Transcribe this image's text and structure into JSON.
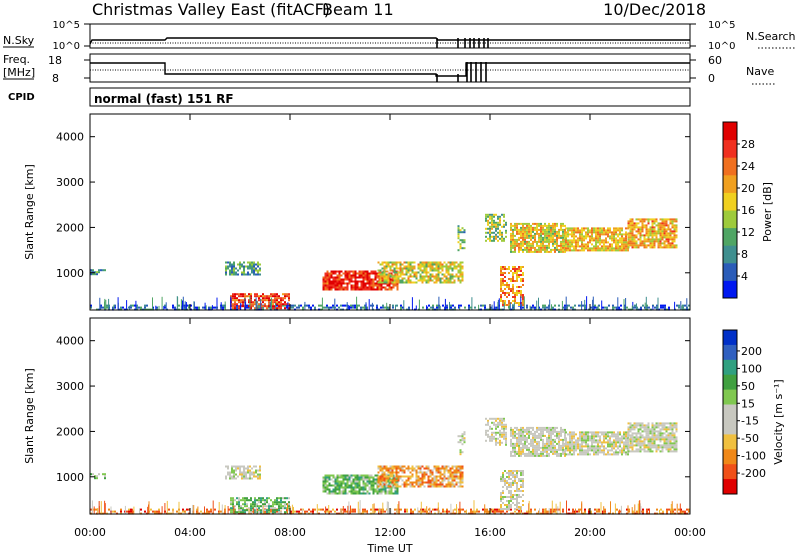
{
  "header": {
    "title": "Christmas Valley East (fitACF)",
    "beam": "Beam 11",
    "date": "10/Dec/2018"
  },
  "sky_panel": {
    "left_label": "N.Sky",
    "left_ticks": [
      "10^5",
      "10^0"
    ],
    "right_label": "N.Search",
    "right_ticks": [
      "10^5",
      "10^0"
    ]
  },
  "freq_panel": {
    "left_label_line1": "Freq.",
    "left_label_line2": "[MHz]",
    "left_ticks": [
      "18",
      "8"
    ],
    "right_label": "Nave",
    "right_ticks": [
      "60",
      "0"
    ]
  },
  "cpid": {
    "label": "CPID",
    "text": "normal (fast) 151 RF"
  },
  "colors": {
    "power": [
      "#0018f0",
      "#2a5cb8",
      "#3f8f8f",
      "#4fa564",
      "#9ecb3c",
      "#f0d020",
      "#f0a020",
      "#f07020",
      "#f03020",
      "#e00000"
    ],
    "velocity": [
      "#e00000",
      "#f05018",
      "#f08818",
      "#f0c040",
      "#c8c8c0",
      "#c8c8c0",
      "#80c850",
      "#40a040",
      "#30a080",
      "#3060c0",
      "#0030c8"
    ]
  },
  "chart_data": [
    {
      "type": "heatmap",
      "name": "power",
      "ylabel": "Slant Range [km]",
      "y_ticks": [
        "1000",
        "2000",
        "3000",
        "4000"
      ],
      "ylim": [
        180,
        4500
      ],
      "xlim": [
        0,
        24
      ],
      "colorbar": {
        "label": "Power [dB]",
        "ticks": [
          "4",
          "8",
          "12",
          "16",
          "20",
          "24",
          "28"
        ],
        "range": [
          0,
          32
        ]
      },
      "regions": [
        {
          "t0": 0.0,
          "t1": 24.0,
          "r0": 200,
          "r1": 300,
          "level": 6,
          "density": 0.45
        },
        {
          "t0": 0.0,
          "t1": 0.6,
          "r0": 950,
          "r1": 1080,
          "level": 9,
          "density": 0.5
        },
        {
          "t0": 5.4,
          "t1": 6.8,
          "r0": 950,
          "r1": 1250,
          "level": 10,
          "density": 0.65
        },
        {
          "t0": 5.6,
          "t1": 8.0,
          "r0": 240,
          "r1": 550,
          "level": 27,
          "density": 0.7
        },
        {
          "t0": 9.3,
          "t1": 12.3,
          "r0": 650,
          "r1": 1050,
          "level": 28,
          "density": 0.85
        },
        {
          "t0": 11.5,
          "t1": 14.9,
          "r0": 780,
          "r1": 1250,
          "level": 17,
          "density": 0.75
        },
        {
          "t0": 14.7,
          "t1": 15.0,
          "r0": 1500,
          "r1": 2050,
          "level": 12,
          "density": 0.4
        },
        {
          "t0": 15.8,
          "t1": 16.6,
          "r0": 1700,
          "r1": 2300,
          "level": 14,
          "density": 0.55
        },
        {
          "t0": 16.4,
          "t1": 17.3,
          "r0": 300,
          "r1": 1150,
          "level": 22,
          "density": 0.6
        },
        {
          "t0": 16.8,
          "t1": 19.0,
          "r0": 1450,
          "r1": 2100,
          "level": 18,
          "density": 0.8
        },
        {
          "t0": 19.0,
          "t1": 21.5,
          "r0": 1500,
          "r1": 2000,
          "level": 19,
          "density": 0.8
        },
        {
          "t0": 21.5,
          "t1": 23.5,
          "r0": 1550,
          "r1": 2200,
          "level": 20,
          "density": 0.8
        }
      ]
    },
    {
      "type": "heatmap",
      "name": "velocity",
      "ylabel": "Slant Range [km]",
      "y_ticks": [
        "1000",
        "2000",
        "3000",
        "4000"
      ],
      "ylim": [
        180,
        4500
      ],
      "xlim": [
        0,
        24
      ],
      "xlabel": "Time UT",
      "x_ticks": [
        "00:00",
        "04:00",
        "08:00",
        "12:00",
        "16:00",
        "20:00",
        "00:00"
      ],
      "colorbar": {
        "label": "Velocity [m s⁻¹]",
        "ticks": [
          "200",
          "100",
          "50",
          "15",
          "-15",
          "-50",
          "-100",
          "-200"
        ]
      },
      "regions": [
        {
          "t0": 0.0,
          "t1": 24.0,
          "r0": 200,
          "r1": 300,
          "level": 2,
          "density": 0.5
        },
        {
          "t0": 0.0,
          "t1": 0.6,
          "r0": 950,
          "r1": 1080,
          "level": 6,
          "density": 0.4
        },
        {
          "t0": 5.4,
          "t1": 6.8,
          "r0": 950,
          "r1": 1250,
          "level": 5,
          "density": 0.65
        },
        {
          "t0": 5.6,
          "t1": 8.0,
          "r0": 240,
          "r1": 550,
          "level": 7,
          "density": 0.7
        },
        {
          "t0": 9.3,
          "t1": 12.3,
          "r0": 650,
          "r1": 1050,
          "level": 7,
          "density": 0.85
        },
        {
          "t0": 11.5,
          "t1": 14.9,
          "r0": 780,
          "r1": 1250,
          "level": 3,
          "density": 0.75
        },
        {
          "t0": 14.7,
          "t1": 15.0,
          "r0": 1500,
          "r1": 2050,
          "level": 5,
          "density": 0.4
        },
        {
          "t0": 15.8,
          "t1": 16.6,
          "r0": 1700,
          "r1": 2300,
          "level": 5,
          "density": 0.55
        },
        {
          "t0": 16.4,
          "t1": 17.3,
          "r0": 300,
          "r1": 1150,
          "level": 5,
          "density": 0.6
        },
        {
          "t0": 16.8,
          "t1": 19.0,
          "r0": 1450,
          "r1": 2100,
          "level": 5,
          "density": 0.8
        },
        {
          "t0": 19.0,
          "t1": 21.5,
          "r0": 1500,
          "r1": 2000,
          "level": 5,
          "density": 0.8
        },
        {
          "t0": 21.5,
          "t1": 23.5,
          "r0": 1550,
          "r1": 2200,
          "level": 5,
          "density": 0.8
        }
      ]
    }
  ]
}
